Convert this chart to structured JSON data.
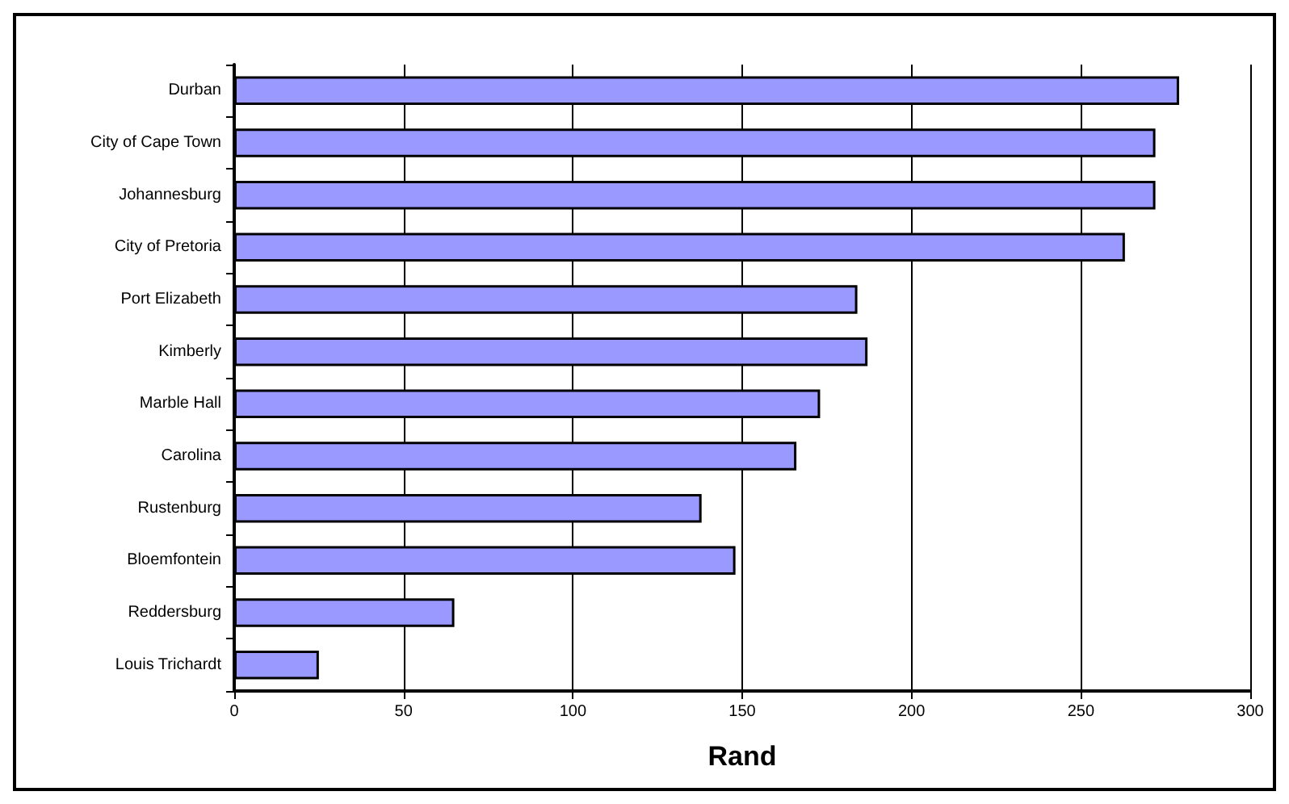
{
  "chart_data": {
    "type": "bar",
    "orientation": "horizontal",
    "xlabel": "Rand",
    "categories": [
      "Durban",
      "City of Cape Town",
      "Johannesburg",
      "City of Pretoria",
      "Port Elizabeth",
      "Kimberly",
      "Marble Hall",
      "Carolina",
      "Rustenburg",
      "Bloemfontein",
      "Reddersburg",
      "Louis Trichardt"
    ],
    "values": [
      279,
      272,
      272,
      263,
      184,
      187,
      173,
      166,
      138,
      148,
      65,
      25
    ],
    "color": "#9999ff",
    "xlim": [
      0,
      300
    ],
    "xticks": [
      0,
      50,
      100,
      150,
      200,
      250,
      300
    ],
    "grid": "x"
  }
}
